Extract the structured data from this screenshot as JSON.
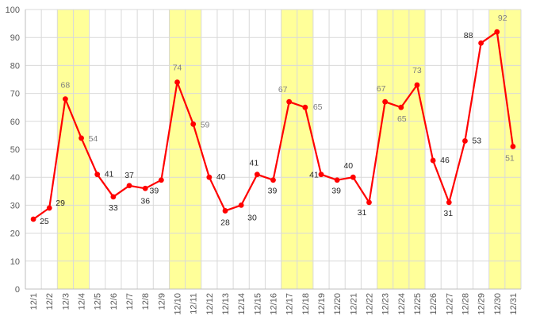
{
  "chart_data": {
    "type": "line",
    "title": "",
    "xlabel": "",
    "ylabel": "",
    "ylim": [
      0,
      100
    ],
    "yticks": [
      0,
      10,
      20,
      30,
      40,
      50,
      60,
      70,
      80,
      90,
      100
    ],
    "grid": true,
    "legend": "none",
    "categories": [
      "12/1",
      "12/2",
      "12/3",
      "12/4",
      "12/5",
      "12/6",
      "12/7",
      "12/8",
      "12/9",
      "12/10",
      "12/11",
      "12/12",
      "12/13",
      "12/14",
      "12/15",
      "12/16",
      "12/17",
      "12/18",
      "12/19",
      "12/20",
      "12/21",
      "12/22",
      "12/23",
      "12/24",
      "12/25",
      "12/26",
      "12/27",
      "12/28",
      "12/29",
      "12/30",
      "12/31"
    ],
    "series": [
      {
        "values": [
          25,
          29,
          68,
          54,
          41,
          33,
          37,
          36,
          39,
          74,
          59,
          40,
          28,
          30,
          41,
          39,
          67,
          65,
          41,
          39,
          40,
          31,
          67,
          65,
          73,
          46,
          31,
          53,
          88,
          92,
          51
        ],
        "color": "#ff0000",
        "label_color": "#262626",
        "highlight_label_color": "#7f7f7f"
      }
    ],
    "highlight_ranges": [
      {
        "from": "12/3",
        "to": "12/4"
      },
      {
        "from": "12/10",
        "to": "12/11"
      },
      {
        "from": "12/17",
        "to": "12/18"
      },
      {
        "from": "12/23",
        "to": "12/25"
      },
      {
        "from": "12/30",
        "to": "12/31"
      }
    ],
    "highlight_color": "#ffff99",
    "grid_color": "#d9d9d9",
    "axis_color": "#bfbfbf"
  }
}
